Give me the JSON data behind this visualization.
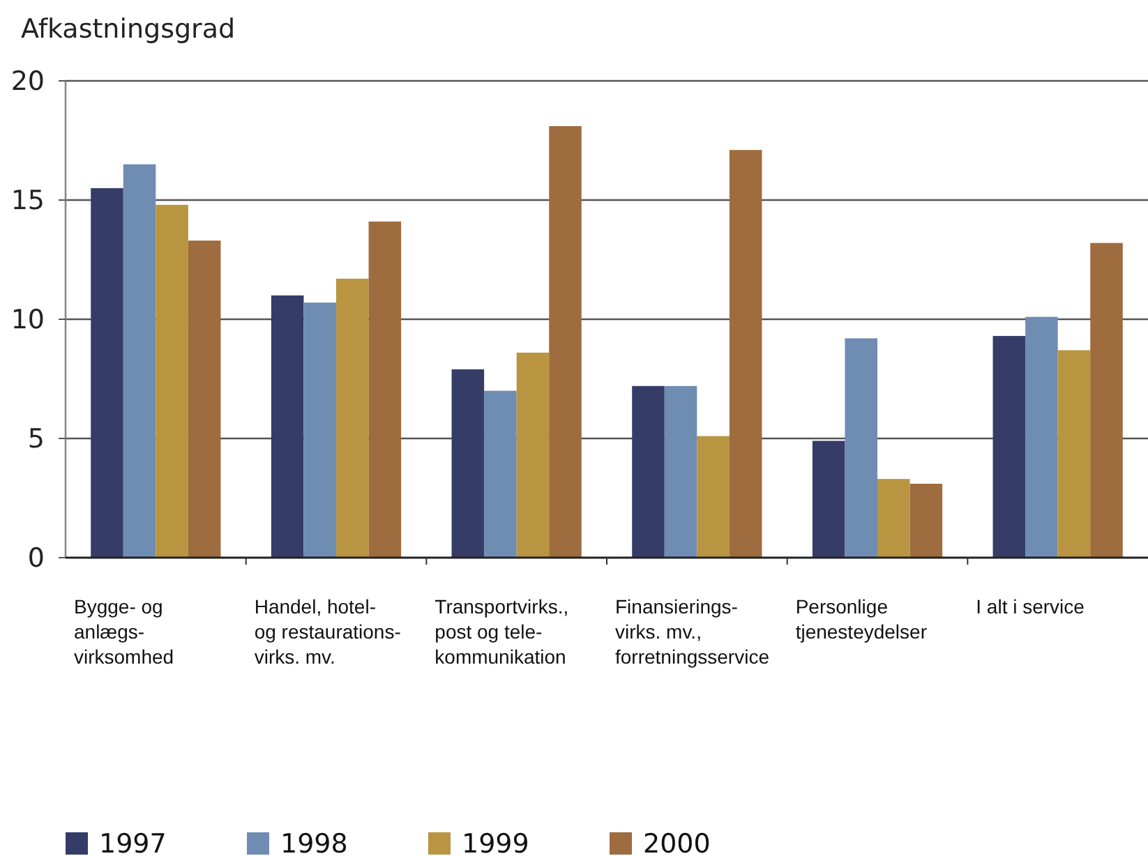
{
  "chart_data": {
    "type": "bar",
    "ylabel": "Afkastningsgrad",
    "categories": [
      "Bygge- og\nanlægs-\nvirksomhed",
      "Handel, hotel-\nog restaurations-\nvirks. mv.",
      "Transportvirks.,\npost og tele-\nkommunikation",
      "Finansierings-\nvirks. mv.,\nforretningsservice",
      "Personlige\ntjenesteydelser",
      "I alt i service"
    ],
    "series": [
      {
        "name": "1997",
        "color": "#363c68",
        "values": [
          15.5,
          11.0,
          7.9,
          7.2,
          4.9,
          9.3
        ]
      },
      {
        "name": "1998",
        "color": "#6f8cb3",
        "values": [
          16.5,
          10.7,
          7.0,
          7.2,
          9.2,
          10.1
        ]
      },
      {
        "name": "1999",
        "color": "#b99541",
        "values": [
          14.8,
          11.7,
          8.6,
          5.1,
          3.3,
          8.7
        ]
      },
      {
        "name": "2000",
        "color": "#9e6c3e",
        "values": [
          13.3,
          14.1,
          18.1,
          17.1,
          3.1,
          13.2
        ]
      }
    ],
    "ylim": [
      0,
      20
    ],
    "yticks": [
      0,
      5,
      10,
      15,
      20
    ],
    "grid": "y",
    "legend": "bottom"
  }
}
